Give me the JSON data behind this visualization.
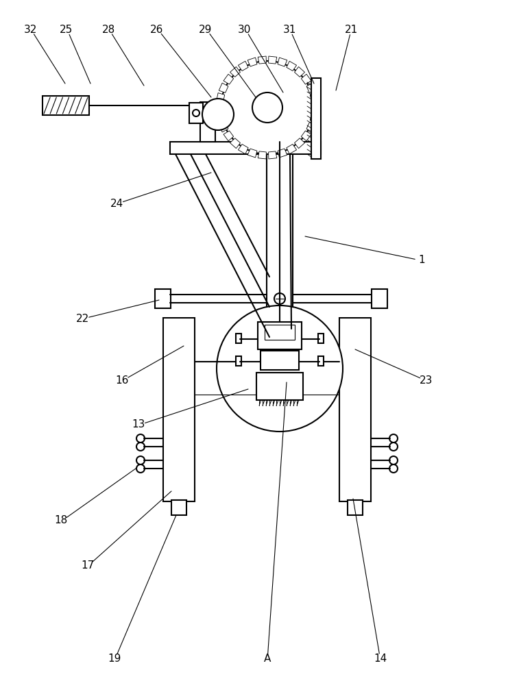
{
  "bg_color": "#ffffff",
  "line_color": "#000000",
  "lw": 1.5,
  "tlw": 0.8,
  "font_size": 11,
  "labels": [
    [
      "32",
      44,
      957,
      95,
      878
    ],
    [
      "25",
      97,
      957,
      132,
      878
    ],
    [
      "28",
      158,
      957,
      210,
      875
    ],
    [
      "26",
      229,
      957,
      308,
      858
    ],
    [
      "29",
      300,
      957,
      373,
      858
    ],
    [
      "30",
      357,
      957,
      413,
      865
    ],
    [
      "31",
      422,
      957,
      458,
      878
    ],
    [
      "21",
      513,
      957,
      490,
      868
    ],
    [
      "1",
      615,
      620,
      445,
      655
    ],
    [
      "24",
      170,
      703,
      308,
      748
    ],
    [
      "22",
      120,
      535,
      232,
      562
    ],
    [
      "16",
      178,
      445,
      268,
      495
    ],
    [
      "23",
      622,
      445,
      518,
      490
    ],
    [
      "13",
      202,
      380,
      362,
      432
    ],
    [
      "18",
      89,
      240,
      198,
      316
    ],
    [
      "17",
      128,
      175,
      250,
      283
    ],
    [
      "19",
      167,
      38,
      257,
      248
    ],
    [
      "A",
      390,
      38,
      418,
      442
    ],
    [
      "14",
      555,
      38,
      515,
      272
    ]
  ]
}
